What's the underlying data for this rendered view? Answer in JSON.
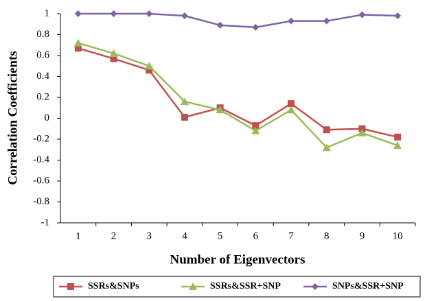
{
  "chart_data": {
    "type": "line",
    "x_label": "Number of Eigenvectors",
    "y_label": "Correlation Coefficients",
    "categories": [
      "1",
      "2",
      "3",
      "4",
      "5",
      "6",
      "7",
      "8",
      "9",
      "10"
    ],
    "series": [
      {
        "name": "SSRs&SNPs",
        "color": "#c0504d",
        "marker": "square",
        "values": [
          0.67,
          0.57,
          0.46,
          0.01,
          0.1,
          -0.07,
          0.14,
          -0.11,
          -0.1,
          -0.18
        ]
      },
      {
        "name": "SSRs&SSR+SNP",
        "color": "#9bbb59",
        "marker": "triangle",
        "values": [
          0.72,
          0.62,
          0.5,
          0.16,
          0.08,
          -0.12,
          0.08,
          -0.28,
          -0.14,
          -0.26
        ]
      },
      {
        "name": "SNPs&SSR+SNP",
        "color": "#8064a2",
        "marker": "diamond",
        "values": [
          1.0,
          1.0,
          1.0,
          0.98,
          0.89,
          0.87,
          0.93,
          0.93,
          0.99,
          0.98
        ]
      }
    ],
    "ylim": [
      -1,
      1
    ],
    "yticks": [
      -1,
      -0.8,
      -0.6,
      -0.4,
      -0.2,
      0,
      0.2,
      0.4,
      0.6,
      0.8,
      1
    ],
    "legend": "bottom"
  }
}
